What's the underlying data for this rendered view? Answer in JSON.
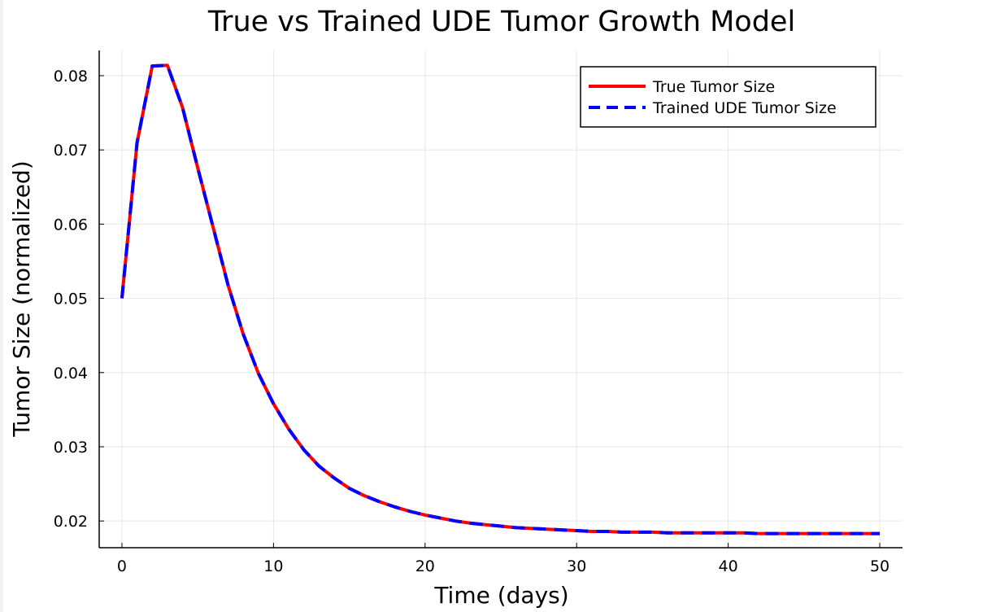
{
  "chart_data": {
    "type": "line",
    "title": "True vs Trained UDE Tumor Growth Model",
    "xlabel": "Time (days)",
    "ylabel": "Tumor Size (normalized)",
    "xlim": [
      -1.5,
      51.5
    ],
    "ylim": [
      0.0164,
      0.0834
    ],
    "xticks": [
      0,
      10,
      20,
      30,
      40,
      50
    ],
    "xtick_labels": [
      "0",
      "10",
      "20",
      "30",
      "40",
      "50"
    ],
    "yticks": [
      0.02,
      0.03,
      0.04,
      0.05,
      0.06,
      0.07,
      0.08
    ],
    "ytick_labels": [
      "0.02",
      "0.03",
      "0.04",
      "0.05",
      "0.06",
      "0.07",
      "0.08"
    ],
    "grid": true,
    "legend_position": "top-right",
    "x": [
      0,
      1,
      2,
      3,
      4,
      5,
      6,
      7,
      8,
      9,
      10,
      11,
      12,
      13,
      14,
      15,
      16,
      17,
      18,
      19,
      20,
      21,
      22,
      23,
      24,
      25,
      26,
      27,
      28,
      29,
      30,
      31,
      32,
      33,
      34,
      35,
      36,
      37,
      38,
      39,
      40,
      41,
      42,
      43,
      44,
      45,
      46,
      47,
      48,
      49,
      50
    ],
    "series": [
      {
        "name": "True Tumor Size",
        "color": "#ff0000",
        "style": "solid",
        "values": [
          0.05,
          0.071,
          0.0813,
          0.0814,
          0.0757,
          0.0676,
          0.0597,
          0.0518,
          0.0452,
          0.0399,
          0.0358,
          0.0324,
          0.0296,
          0.0274,
          0.0258,
          0.0244,
          0.0234,
          0.0226,
          0.0219,
          0.0213,
          0.0208,
          0.0204,
          0.02,
          0.0197,
          0.0195,
          0.0193,
          0.0191,
          0.019,
          0.0189,
          0.0188,
          0.0187,
          0.0186,
          0.0186,
          0.0185,
          0.0185,
          0.0185,
          0.0184,
          0.0184,
          0.0184,
          0.0184,
          0.0184,
          0.0184,
          0.0183,
          0.0183,
          0.0183,
          0.0183,
          0.0183,
          0.0183,
          0.0183,
          0.0183,
          0.0183
        ]
      },
      {
        "name": "Trained UDE Tumor Size",
        "color": "#0000ff",
        "style": "dashed",
        "values": [
          0.05,
          0.071,
          0.0813,
          0.0814,
          0.0757,
          0.0676,
          0.0597,
          0.0518,
          0.0452,
          0.0399,
          0.0358,
          0.0324,
          0.0296,
          0.0274,
          0.0258,
          0.0244,
          0.0234,
          0.0226,
          0.0219,
          0.0213,
          0.0208,
          0.0204,
          0.02,
          0.0197,
          0.0195,
          0.0193,
          0.0191,
          0.019,
          0.0189,
          0.0188,
          0.0187,
          0.0186,
          0.0186,
          0.0185,
          0.0185,
          0.0185,
          0.0184,
          0.0184,
          0.0184,
          0.0184,
          0.0184,
          0.0184,
          0.0183,
          0.0183,
          0.0183,
          0.0183,
          0.0183,
          0.0183,
          0.0183,
          0.0183,
          0.0183
        ]
      }
    ]
  }
}
